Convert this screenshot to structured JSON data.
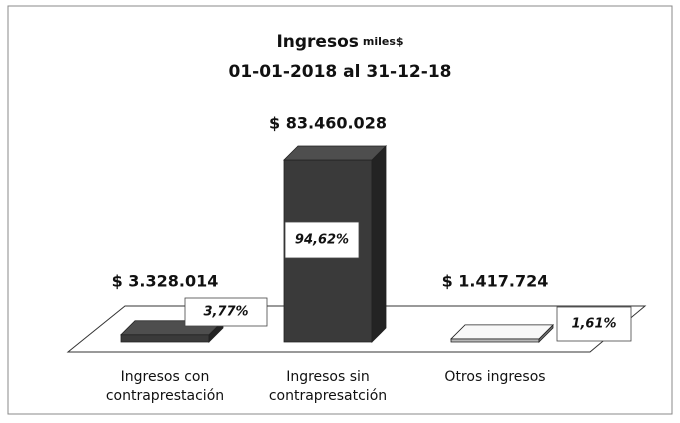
{
  "chart_data": {
    "type": "bar3d",
    "title": "Ingresos",
    "unit": "miles$",
    "subtitle": "01-01-2018 al 31-12-18",
    "categories": [
      "Ingresos con contraprestación",
      "Ingresos sin contrapresatción",
      "Otros ingresos"
    ],
    "values": [
      3328014,
      83460028,
      1417724
    ],
    "value_labels": [
      "$ 3.328.014",
      "$ 83.460.028",
      "$ 1.417.724"
    ],
    "shares": [
      3.77,
      94.62,
      1.61
    ],
    "share_labels": [
      "3,77%",
      "94,62%",
      "1,61%"
    ],
    "colors": [
      "#3a3a3a",
      "#3a3a3a",
      "#b8b8b8"
    ]
  }
}
